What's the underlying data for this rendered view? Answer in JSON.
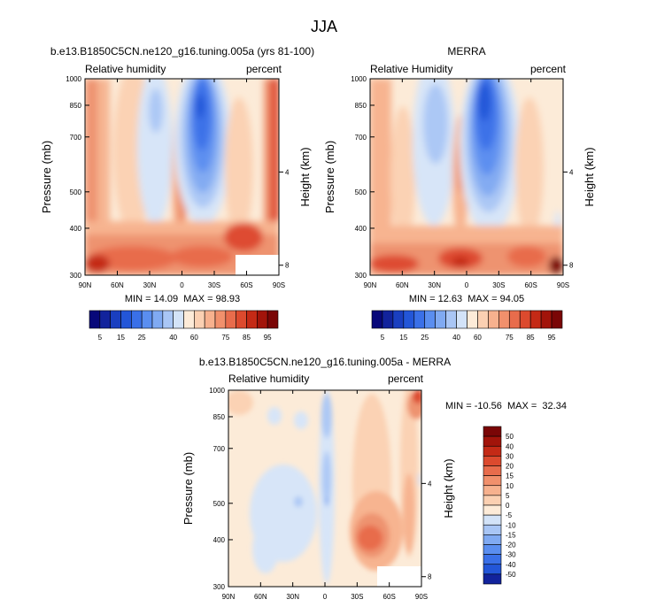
{
  "figure": {
    "title": "JJA"
  },
  "chart_data": [
    {
      "type": "heatmap",
      "title": "b.e13.B1850C5CN.ne120_g16.tuning.005a (yrs 81-100)",
      "left_string": "Relative humidity",
      "right_string": "percent",
      "xlabel": "",
      "ylabel": "Pressure (mb)",
      "ylabel_right": "Height (km)",
      "x_ticks": [
        "90N",
        "60N",
        "30N",
        "0",
        "30S",
        "60S",
        "90S"
      ],
      "x_values": [
        90,
        60,
        30,
        0,
        -30,
        -60,
        -90
      ],
      "y_ticks": [
        "300",
        "400",
        "500",
        "700",
        "850",
        "1000"
      ],
      "y_values": [
        300,
        400,
        500,
        700,
        850,
        1000
      ],
      "height_ticks": [
        "8",
        "4"
      ],
      "height_values": [
        8,
        4
      ],
      "ylim": [
        1000,
        300
      ],
      "y_scale": "log",
      "minmax_text": "MIN = 14.09  MAX = 98.93",
      "min": 14.09,
      "max": 98.93
    },
    {
      "type": "heatmap",
      "title": "MERRA",
      "left_string": "Relative Humidity",
      "right_string": "percent",
      "xlabel": "",
      "ylabel": "Pressure (mb)",
      "ylabel_right": "Height (km)",
      "x_ticks": [
        "90N",
        "60N",
        "30N",
        "0",
        "30S",
        "60S",
        "90S"
      ],
      "x_values": [
        90,
        60,
        30,
        0,
        -30,
        -60,
        -90
      ],
      "y_ticks": [
        "300",
        "400",
        "500",
        "700",
        "850",
        "1000"
      ],
      "y_values": [
        300,
        400,
        500,
        700,
        850,
        1000
      ],
      "height_ticks": [
        "8",
        "4"
      ],
      "height_values": [
        8,
        4
      ],
      "ylim": [
        1000,
        300
      ],
      "y_scale": "log",
      "minmax_text": "MIN = 12.63  MAX = 94.05",
      "min": 12.63,
      "max": 94.05
    },
    {
      "type": "heatmap",
      "title": "b.e13.B1850C5CN.ne120_g16.tuning.005a - MERRA",
      "left_string": "Relative humidity",
      "right_string": "percent",
      "xlabel": "",
      "ylabel": "Pressure (mb)",
      "ylabel_right": "Height (km)",
      "x_ticks": [
        "90N",
        "60N",
        "30N",
        "0",
        "30S",
        "60S",
        "90S"
      ],
      "x_values": [
        90,
        60,
        30,
        0,
        -30,
        -60,
        -90
      ],
      "y_ticks": [
        "300",
        "400",
        "500",
        "700",
        "850",
        "1000"
      ],
      "y_values": [
        300,
        400,
        500,
        700,
        850,
        1000
      ],
      "height_ticks": [
        "8",
        "4"
      ],
      "height_values": [
        8,
        4
      ],
      "ylim": [
        1000,
        300
      ],
      "y_scale": "log",
      "minmax_text": "MIN = -10.56  MAX =  32.34",
      "min": -10.56,
      "max": 32.34
    }
  ],
  "colorbar_rh": {
    "levels": [
      5,
      10,
      15,
      20,
      25,
      30,
      35,
      40,
      50,
      60,
      65,
      70,
      75,
      80,
      85,
      90,
      95
    ],
    "labels": [
      "5",
      "15",
      "25",
      "40",
      "60",
      "75",
      "85",
      "95"
    ],
    "colors": [
      "#08087a",
      "#12239c",
      "#1a3fc0",
      "#2356d8",
      "#3a70e8",
      "#5a8ef0",
      "#80aaf2",
      "#a9c6f5",
      "#d3e3f8",
      "#fdebd8",
      "#fbd0b2",
      "#f7b18e",
      "#f1906c",
      "#e86c4c",
      "#dc4a2e",
      "#c42a16",
      "#a2140a",
      "#7a0606"
    ]
  },
  "colorbar_diff": {
    "labels": [
      "50",
      "40",
      "30",
      "20",
      "15",
      "10",
      "5",
      "0",
      "-5",
      "-10",
      "-15",
      "-20",
      "-30",
      "-40",
      "-50"
    ],
    "colors": [
      "#7a0606",
      "#a2140a",
      "#c42a16",
      "#dc4a2e",
      "#e86c4c",
      "#f1906c",
      "#f7b18e",
      "#fbd0b2",
      "#fdebd8",
      "#d3e3f8",
      "#a9c6f5",
      "#80aaf2",
      "#5a8ef0",
      "#3a70e8",
      "#2356d8",
      "#12239c"
    ]
  }
}
